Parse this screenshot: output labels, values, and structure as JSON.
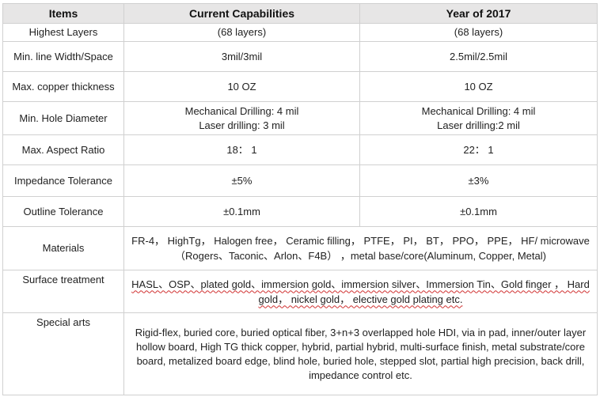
{
  "headers": [
    "Items",
    "Current Capabilities",
    "Year of 2017"
  ],
  "rows": [
    {
      "item": "Highest Layers",
      "current": "(68 layers)",
      "year2017": "(68 layers)"
    },
    {
      "item": "Min. line Width/Space",
      "current": "3mil/3mil",
      "year2017": "2.5mil/2.5mil"
    },
    {
      "item": "Max. copper thickness",
      "current": "10 OZ",
      "year2017": "10 OZ"
    },
    {
      "item": "Min. Hole Diameter",
      "current_lines": [
        "Mechanical Drilling: 4 mil",
        "Laser drilling: 3 mil"
      ],
      "year2017_lines": [
        "Mechanical Drilling: 4 mil",
        "Laser drilling:2 mil"
      ]
    },
    {
      "item": "Max. Aspect Ratio",
      "current": "18： 1",
      "year2017": "22： 1"
    },
    {
      "item": "Impedance Tolerance",
      "current": "±5%",
      "year2017": "±3%"
    },
    {
      "item": "Outline Tolerance",
      "current": "±0.1mm",
      "year2017": "±0.1mm"
    }
  ],
  "merged_rows": [
    {
      "item": "Materials",
      "text": "FR-4， HighTg， Halogen free， Ceramic filling， PTFE， PI， BT， PPO， PPE， HF/ microwave （Rogers、Taconic、Arlon、F4B） ，metal base/core(Aluminum, Copper, Metal)"
    },
    {
      "item": "Surface treatment",
      "text": "HASL、OSP、plated gold、immersion gold、immersion silver、Immersion Tin、Gold finger ， Hard gold， nickel gold， elective gold plating etc."
    },
    {
      "item": "Special arts",
      "text": "Rigid-flex, buried core, buried optical fiber, 3+n+3 overlapped hole HDI, via in pad, inner/outer layer hollow board, High TG thick copper, hybrid, partial hybrid, multi-surface finish, metal substrate/core board, metalized board edge, blind hole, buried hole, stepped slot, partial high precision, back drill, impedance control etc."
    }
  ]
}
